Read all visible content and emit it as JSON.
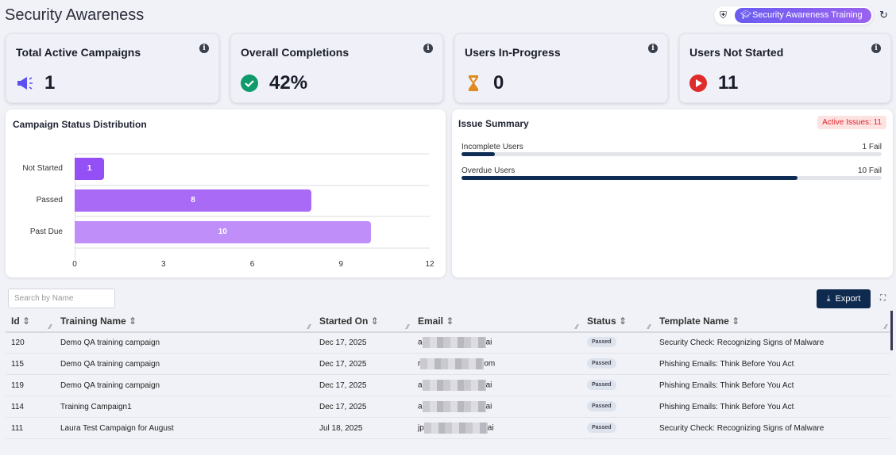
{
  "header": {
    "title": "Security Awareness",
    "training_button": "Security Awareness Training",
    "icons": [
      "shield-icon",
      "graduation-cap-icon",
      "refresh-icon"
    ]
  },
  "cards": [
    {
      "title": "Total Active Campaigns",
      "value": "1",
      "icon": "megaphone-icon",
      "color": "#5b4ff0"
    },
    {
      "title": "Overall Completions",
      "value": "42%",
      "icon": "check-circle-icon",
      "color": "#0e9a6a"
    },
    {
      "title": "Users In-Progress",
      "value": "0",
      "icon": "hourglass-icon",
      "color": "#e08a1e"
    },
    {
      "title": "Users Not Started",
      "value": "11",
      "icon": "play-circle-icon",
      "color": "#e02b2b"
    }
  ],
  "chart_data": {
    "type": "bar",
    "orientation": "horizontal",
    "title": "Campaign Status Distribution",
    "categories": [
      "Not Started",
      "Passed",
      "Past Due"
    ],
    "values": [
      1,
      8,
      10
    ],
    "colors": [
      "#9450f5",
      "#a96af5",
      "#bf8ef8"
    ],
    "xlim": [
      0,
      12
    ],
    "xticks": [
      "0",
      "3",
      "6",
      "9",
      "12"
    ],
    "grid": true
  },
  "issues": {
    "title": "Issue Summary",
    "badge": "Active Issues: 11",
    "items": [
      {
        "label": "Incomplete Users",
        "value": "1 Fail",
        "fraction": 0.08
      },
      {
        "label": "Overdue Users",
        "value": "10 Fail",
        "fraction": 0.8
      }
    ]
  },
  "table": {
    "search_placeholder": "Search by Name",
    "export_label": "Export",
    "columns": [
      "Id",
      "Training Name",
      "Started On",
      "Email",
      "Status",
      "Template Name"
    ],
    "rows": [
      {
        "id": "120",
        "name": "Demo QA training campaign",
        "started": "Dec 17, 2025",
        "email_start": "a",
        "email_end": "ai",
        "status": "Passed",
        "template": "Security Check: Recognizing Signs of Malware"
      },
      {
        "id": "115",
        "name": "Demo QA training campaign",
        "started": "Dec 17, 2025",
        "email_start": "r",
        "email_end": "om",
        "status": "Passed",
        "template": "Phishing Emails: Think Before You Act"
      },
      {
        "id": "119",
        "name": "Demo QA training campaign",
        "started": "Dec 17, 2025",
        "email_start": "a",
        "email_end": "ai",
        "status": "Passed",
        "template": "Phishing Emails: Think Before You Act"
      },
      {
        "id": "114",
        "name": "Training Campaign1",
        "started": "Dec 17, 2025",
        "email_start": "a",
        "email_end": "ai",
        "status": "Passed",
        "template": "Phishing Emails: Think Before You Act"
      },
      {
        "id": "111",
        "name": "Laura Test Campaign for August",
        "started": "Jul 18, 2025",
        "email_start": "jp",
        "email_end": "ai",
        "status": "Passed",
        "template": "Security Check: Recognizing Signs of Malware"
      }
    ]
  }
}
